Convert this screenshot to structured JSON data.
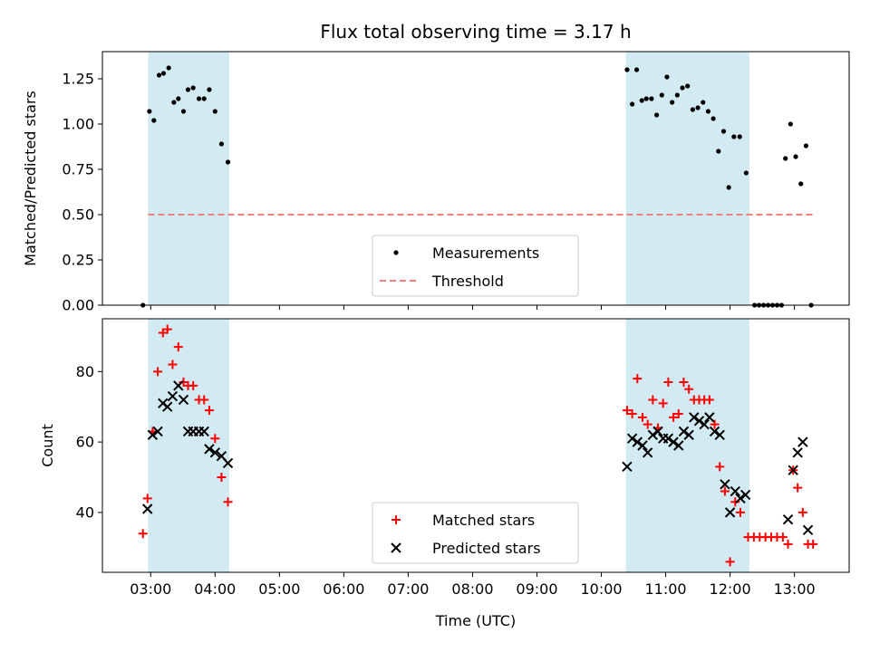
{
  "chart_data": {
    "type": "scatter",
    "title": "Flux total observing time = 3.17 h",
    "xlabel": "Time (UTC)",
    "x_unit": "hours UTC",
    "xlim": [
      2.25,
      13.85
    ],
    "x_ticks": [
      3,
      4,
      5,
      6,
      7,
      8,
      9,
      10,
      11,
      12,
      13
    ],
    "x_tick_labels": [
      "03:00",
      "04:00",
      "05:00",
      "06:00",
      "07:00",
      "08:00",
      "09:00",
      "10:00",
      "11:00",
      "12:00",
      "13:00"
    ],
    "shaded_intervals": [
      [
        2.96,
        4.22
      ],
      [
        10.38,
        12.3
      ]
    ],
    "shade_color": "#add8e6",
    "panels": [
      {
        "ylabel": "Matched/Predicted stars",
        "ylim": [
          0,
          1.4
        ],
        "y_ticks": [
          0,
          0.25,
          0.5,
          0.75,
          1.0,
          1.25
        ],
        "y_tick_labels": [
          "0.00",
          "0.25",
          "0.50",
          "0.75",
          "1.00",
          "1.25"
        ],
        "legend_position": "lower-center",
        "series": [
          {
            "name": "Measurements",
            "marker": "dot",
            "color": "#000000",
            "points": [
              [
                2.88,
                0.0
              ],
              [
                2.98,
                1.07
              ],
              [
                3.05,
                1.02
              ],
              [
                3.13,
                1.27
              ],
              [
                3.2,
                1.28
              ],
              [
                3.28,
                1.31
              ],
              [
                3.36,
                1.12
              ],
              [
                3.43,
                1.14
              ],
              [
                3.51,
                1.07
              ],
              [
                3.58,
                1.19
              ],
              [
                3.66,
                1.2
              ],
              [
                3.75,
                1.14
              ],
              [
                3.83,
                1.14
              ],
              [
                3.91,
                1.19
              ],
              [
                4.0,
                1.07
              ],
              [
                4.1,
                0.89
              ],
              [
                4.2,
                0.79
              ],
              [
                10.4,
                1.3
              ],
              [
                10.48,
                1.11
              ],
              [
                10.55,
                1.3
              ],
              [
                10.63,
                1.13
              ],
              [
                10.7,
                1.14
              ],
              [
                10.78,
                1.14
              ],
              [
                10.86,
                1.05
              ],
              [
                10.94,
                1.16
              ],
              [
                11.02,
                1.26
              ],
              [
                11.1,
                1.12
              ],
              [
                11.18,
                1.16
              ],
              [
                11.26,
                1.2
              ],
              [
                11.34,
                1.21
              ],
              [
                11.42,
                1.08
              ],
              [
                11.5,
                1.09
              ],
              [
                11.58,
                1.12
              ],
              [
                11.66,
                1.07
              ],
              [
                11.74,
                1.03
              ],
              [
                11.82,
                0.85
              ],
              [
                11.9,
                0.96
              ],
              [
                11.98,
                0.65
              ],
              [
                12.06,
                0.93
              ],
              [
                12.15,
                0.93
              ],
              [
                12.25,
                0.73
              ],
              [
                12.38,
                0.0
              ],
              [
                12.45,
                0.0
              ],
              [
                12.52,
                0.0
              ],
              [
                12.59,
                0.0
              ],
              [
                12.66,
                0.0
              ],
              [
                12.73,
                0.0
              ],
              [
                12.8,
                0.0
              ],
              [
                12.86,
                0.81
              ],
              [
                12.94,
                1.0
              ],
              [
                13.02,
                0.82
              ],
              [
                13.1,
                0.67
              ],
              [
                13.18,
                0.88
              ],
              [
                13.26,
                0.0
              ]
            ]
          },
          {
            "name": "Threshold",
            "marker": "dashed-line",
            "color": "#f08080",
            "points": [
              [
                2.96,
                0.5
              ],
              [
                13.3,
                0.5
              ]
            ]
          }
        ]
      },
      {
        "ylabel": "Count",
        "ylim": [
          23,
          95
        ],
        "y_ticks": [
          40,
          60,
          80
        ],
        "y_tick_labels": [
          "40",
          "60",
          "80"
        ],
        "legend_position": "lower-center",
        "series": [
          {
            "name": "Matched stars",
            "marker": "plus",
            "color": "#ff0000",
            "points": [
              [
                2.88,
                34
              ],
              [
                2.95,
                44
              ],
              [
                3.03,
                63
              ],
              [
                3.11,
                80
              ],
              [
                3.19,
                91
              ],
              [
                3.26,
                92
              ],
              [
                3.34,
                82
              ],
              [
                3.43,
                87
              ],
              [
                3.51,
                77
              ],
              [
                3.58,
                76
              ],
              [
                3.66,
                76
              ],
              [
                3.75,
                72
              ],
              [
                3.83,
                72
              ],
              [
                3.91,
                69
              ],
              [
                4.0,
                61
              ],
              [
                4.1,
                50
              ],
              [
                4.2,
                43
              ],
              [
                10.4,
                69
              ],
              [
                10.48,
                68
              ],
              [
                10.56,
                78
              ],
              [
                10.64,
                67
              ],
              [
                10.72,
                65
              ],
              [
                10.8,
                72
              ],
              [
                10.88,
                64
              ],
              [
                10.96,
                71
              ],
              [
                11.04,
                77
              ],
              [
                11.12,
                67
              ],
              [
                11.2,
                68
              ],
              [
                11.28,
                77
              ],
              [
                11.36,
                75
              ],
              [
                11.44,
                72
              ],
              [
                11.52,
                72
              ],
              [
                11.6,
                72
              ],
              [
                11.68,
                72
              ],
              [
                11.76,
                65
              ],
              [
                11.84,
                53
              ],
              [
                11.92,
                46
              ],
              [
                12.0,
                26
              ],
              [
                12.08,
                43
              ],
              [
                12.16,
                40
              ],
              [
                12.28,
                33
              ],
              [
                12.37,
                33
              ],
              [
                12.46,
                33
              ],
              [
                12.55,
                33
              ],
              [
                12.64,
                33
              ],
              [
                12.73,
                33
              ],
              [
                12.82,
                33
              ],
              [
                12.9,
                31
              ],
              [
                12.98,
                52
              ],
              [
                13.05,
                47
              ],
              [
                13.13,
                40
              ],
              [
                13.21,
                31
              ],
              [
                13.29,
                31
              ]
            ]
          },
          {
            "name": "Predicted stars",
            "marker": "x",
            "color": "#000000",
            "points": [
              [
                2.95,
                41
              ],
              [
                3.03,
                62
              ],
              [
                3.11,
                63
              ],
              [
                3.19,
                71
              ],
              [
                3.26,
                70
              ],
              [
                3.34,
                73
              ],
              [
                3.43,
                76
              ],
              [
                3.51,
                72
              ],
              [
                3.58,
                63
              ],
              [
                3.66,
                63
              ],
              [
                3.75,
                63
              ],
              [
                3.83,
                63
              ],
              [
                3.91,
                58
              ],
              [
                4.0,
                57
              ],
              [
                4.1,
                56
              ],
              [
                4.2,
                54
              ],
              [
                10.4,
                53
              ],
              [
                10.48,
                61
              ],
              [
                10.56,
                60
              ],
              [
                10.64,
                59
              ],
              [
                10.72,
                57
              ],
              [
                10.8,
                62
              ],
              [
                10.88,
                63
              ],
              [
                10.96,
                61
              ],
              [
                11.04,
                61
              ],
              [
                11.12,
                60
              ],
              [
                11.2,
                59
              ],
              [
                11.28,
                63
              ],
              [
                11.36,
                62
              ],
              [
                11.44,
                67
              ],
              [
                11.52,
                66
              ],
              [
                11.6,
                65
              ],
              [
                11.68,
                67
              ],
              [
                11.76,
                63
              ],
              [
                11.84,
                62
              ],
              [
                11.92,
                48
              ],
              [
                12.0,
                40
              ],
              [
                12.08,
                46
              ],
              [
                12.16,
                44
              ],
              [
                12.24,
                45
              ],
              [
                12.9,
                38
              ],
              [
                12.98,
                52
              ],
              [
                13.05,
                57
              ],
              [
                13.13,
                60
              ],
              [
                13.21,
                35
              ]
            ]
          }
        ]
      }
    ]
  }
}
